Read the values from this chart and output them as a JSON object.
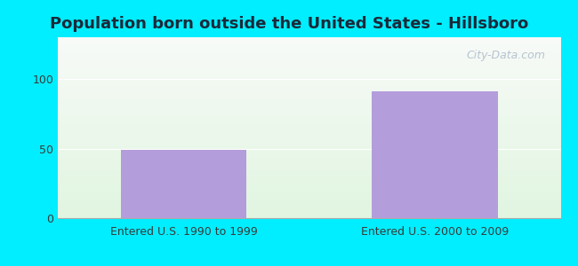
{
  "title": "Population born outside the United States - Hillsboro",
  "categories": [
    "Entered U.S. 1990 to 1999",
    "Entered U.S. 2000 to 2009"
  ],
  "values": [
    49,
    91
  ],
  "bar_color": "#b39ddb",
  "bar_width": 0.5,
  "ylim": [
    0,
    130
  ],
  "yticks": [
    0,
    50,
    100
  ],
  "background_outer": "#00eeff",
  "bg_top_color": "#e8faf0",
  "bg_bottom_color": "#c8f0d8",
  "title_fontsize": 13,
  "tick_label_fontsize": 9,
  "watermark_text": "City-Data.com",
  "watermark_color": "#aabbc8",
  "title_color": "#1a2a3a"
}
